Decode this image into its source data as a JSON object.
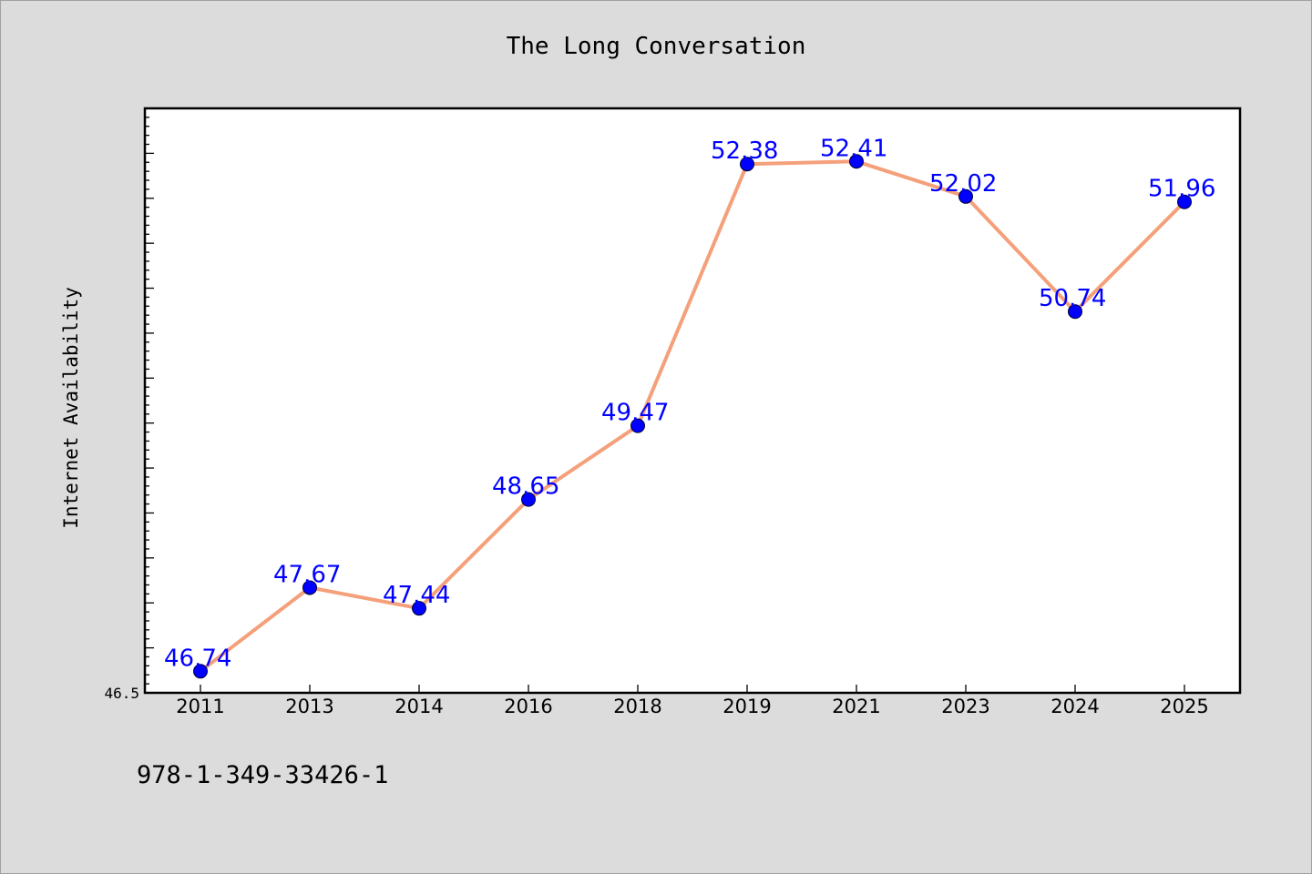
{
  "chart_data": {
    "type": "line",
    "title": "The Long Conversation",
    "xlabel": "",
    "ylabel": "Internet Availability",
    "categories": [
      "2011",
      "2013",
      "2014",
      "2016",
      "2018",
      "2019",
      "2021",
      "2023",
      "2024",
      "2025"
    ],
    "series": [
      {
        "values": [
          46.74,
          47.67,
          47.44,
          48.65,
          49.47,
          52.38,
          52.41,
          52.02,
          50.74,
          51.96
        ],
        "data_labels": [
          "46.74",
          "47.67",
          "47.44",
          "48.65",
          "49.47",
          "52.38",
          "52.41",
          "52.02",
          "50.74",
          "51.96"
        ]
      }
    ],
    "ylim": [
      46.5,
      53.0
    ],
    "y_tick_label": "46.5",
    "grid": false,
    "colors": {
      "line": "#f4a07a",
      "marker": "#0000ff",
      "label": "#0000ff",
      "background": "#dcdcdc",
      "plot_background": "#ffffff"
    }
  },
  "footer": {
    "code": "978-1-349-33426-1"
  }
}
